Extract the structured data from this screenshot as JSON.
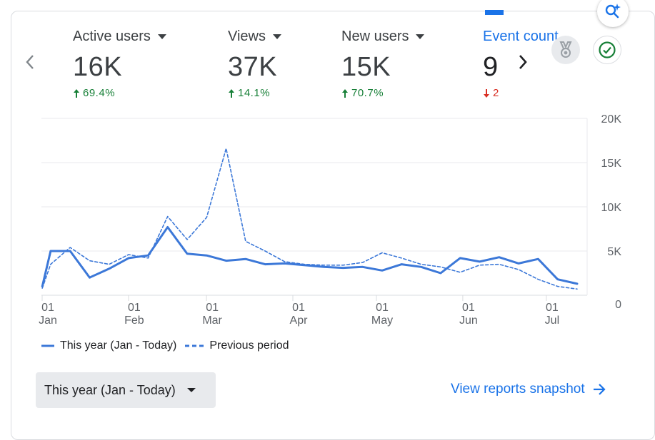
{
  "metrics": [
    {
      "label": "Active users",
      "value": "16K",
      "change": "69.4%",
      "direction": "up"
    },
    {
      "label": "Views",
      "value": "37K",
      "change": "14.1%",
      "direction": "up"
    },
    {
      "label": "New users",
      "value": "15K",
      "change": "70.7%",
      "direction": "up"
    },
    {
      "label": "Event count",
      "value": "9",
      "change": "2",
      "direction": "down"
    }
  ],
  "icons": {
    "magic": "magic-search-icon",
    "prev": "chevron-left-icon",
    "next": "chevron-right-icon",
    "badge": "award-medal-icon",
    "check": "check-circle-icon",
    "arrow": "arrow-right-icon"
  },
  "colors": {
    "accent": "#1a73e8",
    "line": "#3c78d8",
    "up": "#188038",
    "down": "#d93025"
  },
  "chart_data": {
    "type": "line",
    "ylim": [
      0,
      20000
    ],
    "y_ticks": [
      "20K",
      "15K",
      "10K",
      "5K",
      "0"
    ],
    "y_tick_values": [
      20000,
      15000,
      10000,
      5000,
      0
    ],
    "x_ticks": [
      {
        "day": "01",
        "month": "Jan",
        "x": 0
      },
      {
        "day": "01",
        "month": "Feb",
        "x": 31
      },
      {
        "day": "01",
        "month": "Mar",
        "x": 59
      },
      {
        "day": "01",
        "month": "Apr",
        "x": 90
      },
      {
        "day": "01",
        "month": "May",
        "x": 120
      },
      {
        "day": "01",
        "month": "Jun",
        "x": 151
      },
      {
        "day": "01",
        "month": "Jul",
        "x": 181
      }
    ],
    "series": [
      {
        "name": "This year (Jan - Today)",
        "style": "solid",
        "x": [
          -2,
          1,
          8,
          15,
          22,
          29,
          36,
          43,
          50,
          57,
          64,
          71,
          78,
          85,
          92,
          99,
          106,
          113,
          120,
          127,
          134,
          141,
          148,
          155,
          162,
          169,
          176,
          183,
          190
        ],
        "y": [
          1000,
          5000,
          5000,
          2000,
          3000,
          4200,
          4500,
          7700,
          4700,
          4500,
          3900,
          4100,
          3500,
          3600,
          3400,
          3200,
          3100,
          3200,
          2800,
          3500,
          3200,
          2500,
          4200,
          3800,
          4300,
          3600,
          4100,
          1800,
          1300
        ]
      },
      {
        "name": "Previous period",
        "style": "dashed",
        "x": [
          -2,
          1,
          8,
          15,
          22,
          29,
          36,
          43,
          50,
          57,
          64,
          71,
          78,
          85,
          92,
          99,
          106,
          113,
          120,
          127,
          134,
          141,
          148,
          155,
          162,
          169,
          176,
          183,
          190
        ],
        "y": [
          800,
          3500,
          5400,
          3900,
          3500,
          4600,
          4200,
          8900,
          6300,
          8800,
          16600,
          6100,
          5000,
          3800,
          3500,
          3400,
          3400,
          3700,
          4800,
          4200,
          3500,
          3200,
          2600,
          3400,
          3500,
          2900,
          1800,
          1000,
          700
        ]
      }
    ],
    "legend": [
      "This year (Jan - Today)",
      "Previous period"
    ],
    "legend_position": "bottom-left",
    "grid": true
  },
  "range_button": {
    "label": "This year (Jan - Today)"
  },
  "snapshot_link": {
    "label": "View reports snapshot"
  }
}
